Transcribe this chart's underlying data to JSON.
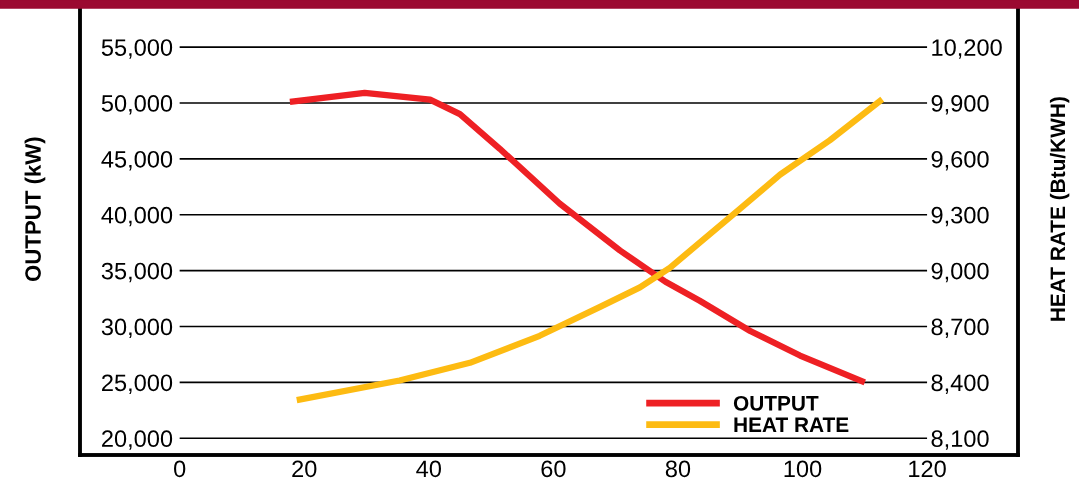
{
  "chart_data": {
    "type": "line",
    "ylabel": "OUTPUT (kW)",
    "y2label": "HEAT RATE (Btu/KWH)",
    "xlim": [
      -16,
      134.6
    ],
    "xticks": [
      0,
      20,
      40,
      60,
      80,
      100,
      120
    ],
    "ylim": [
      18500,
      58500
    ],
    "yticks": [
      {
        "value": 20000,
        "label": "20,000"
      },
      {
        "value": 25000,
        "label": "25,000"
      },
      {
        "value": 30000,
        "label": "30,000"
      },
      {
        "value": 35000,
        "label": "35,000"
      },
      {
        "value": 40000,
        "label": "40,000"
      },
      {
        "value": 45000,
        "label": "45,000"
      },
      {
        "value": 50000,
        "label": "50,000"
      },
      {
        "value": 55000,
        "label": "55,000"
      }
    ],
    "y2lim": [
      8010,
      10410
    ],
    "y2ticks": [
      {
        "value": 8100,
        "label": "8,100"
      },
      {
        "value": 8400,
        "label": "8,400"
      },
      {
        "value": 8700,
        "label": "8,700"
      },
      {
        "value": 9000,
        "label": "9,000"
      },
      {
        "value": 9300,
        "label": "9,300"
      },
      {
        "value": 9600,
        "label": "9,600"
      },
      {
        "value": 9900,
        "label": "9,900"
      },
      {
        "value": 10200,
        "label": "10,200"
      }
    ],
    "grid": "y",
    "legend": "bottom right",
    "marker": "none",
    "line_style": "solid",
    "series": [
      {
        "name": "OUTPUT",
        "color": "#ee2024",
        "x": [
          17.7,
          29.7,
          40.2,
          45,
          51.4,
          61,
          70.7,
          78,
          83.5,
          91.6,
          99.6,
          110
        ],
        "values": [
          50100,
          50900,
          50300,
          49000,
          45900,
          41000,
          36800,
          34000,
          32300,
          29600,
          27400,
          25000
        ]
      },
      {
        "name": "HEAT RATE",
        "color": "#fdbb12",
        "axis": "y2",
        "x": [
          18.8,
          35.3,
          46.6,
          57.8,
          67.5,
          73.9,
          78.7,
          83.5,
          89.9,
          96.4,
          104.4,
          112.8
        ],
        "values": [
          8305,
          8410,
          8505,
          8650,
          8805,
          8910,
          9015,
          9150,
          9330,
          9515,
          9700,
          9920
        ]
      }
    ]
  }
}
